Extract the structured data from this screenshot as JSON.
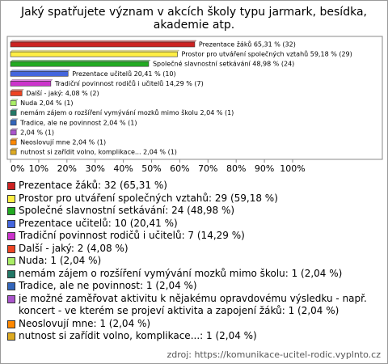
{
  "chart_data": {
    "type": "bar",
    "orientation": "horizontal",
    "title": "Jaký spatřujete význam v akcích školy typu jarmark, besídka, akademie atp.",
    "values": [
      65.31,
      59.18,
      48.98,
      20.41,
      14.29,
      4.08,
      2.04,
      2.04,
      2.04,
      2.04,
      2.04,
      2.04
    ],
    "value_labels": [
      "Prezentace žáků 65,31 % (32)",
      "Prostor pro utváření společných vztahů 59,18 % (29)",
      "Společné slavnostní setkávání 48,98 % (24)",
      "Prezentace učitelů 20,41 % (10)",
      "Tradiční povinnost rodičů i učitelů 14,29 % (7)",
      "Další - jaký: 4,08 % (2)",
      "Nuda 2,04 % (1)",
      "nemám zájem o rozšíření vymývání mozků mimo školu 2,04 % (1)",
      "Tradice, ale ne povinnost 2,04 % (1)",
      "2,04 % (1)",
      "Neoslovují mne 2,04 % (1)",
      "nutnost si zařídit volno, komplikace... 2,04 % (1)"
    ],
    "colors": [
      "#cc2222",
      "#ffee44",
      "#22aa22",
      "#4466dd",
      "#cc33cc",
      "#ee4422",
      "#aaee66",
      "#227766",
      "#3366bb",
      "#aa55cc",
      "#ff8800",
      "#ddaa22"
    ],
    "legend": [
      "Prezentace žáků: 32 (65,31 %)",
      "Prostor pro utváření společných vztahů: 29 (59,18 %)",
      "Společné slavnostní setkávání: 24 (48,98 %)",
      "Prezentace učitelů: 10 (20,41 %)",
      "Tradiční povinnost rodičů i učitelů: 7 (14,29 %)",
      "Další - jaký: 2 (4,08 %)",
      "Nuda: 1 (2,04 %)",
      "nemám zájem o rozšíření vymývání mozků mimo školu: 1 (2,04 %)",
      "Tradice, ale ne povinnost: 1 (2,04 %)",
      "je možné zaměřovat aktivitu k nějakému opravdovému výsledku - např. koncert - ve kterém se projeví aktivita a zapojení žáků: 1 (2,04 %)",
      "Neoslovují mne: 1 (2,04 %)",
      "nutnost si zařídit volno, komplikace...: 1 (2,04 %)"
    ],
    "xlim": [
      0,
      100
    ],
    "xticks": [
      {
        "value": 0,
        "label": "0%"
      },
      {
        "value": 10,
        "label": "10%"
      },
      {
        "value": 20,
        "label": "20%"
      },
      {
        "value": 30,
        "label": "30%"
      },
      {
        "value": 40,
        "label": "40%"
      },
      {
        "value": 50,
        "label": "50%"
      },
      {
        "value": 60,
        "label": "60%"
      },
      {
        "value": 70,
        "label": "70%"
      },
      {
        "value": 80,
        "label": "80%"
      },
      {
        "value": 90,
        "label": "90%"
      },
      {
        "value": 100,
        "label": "100%"
      }
    ],
    "source": "zdroj: https://komunikace-ucitel-rodic.vyplnto.cz"
  }
}
